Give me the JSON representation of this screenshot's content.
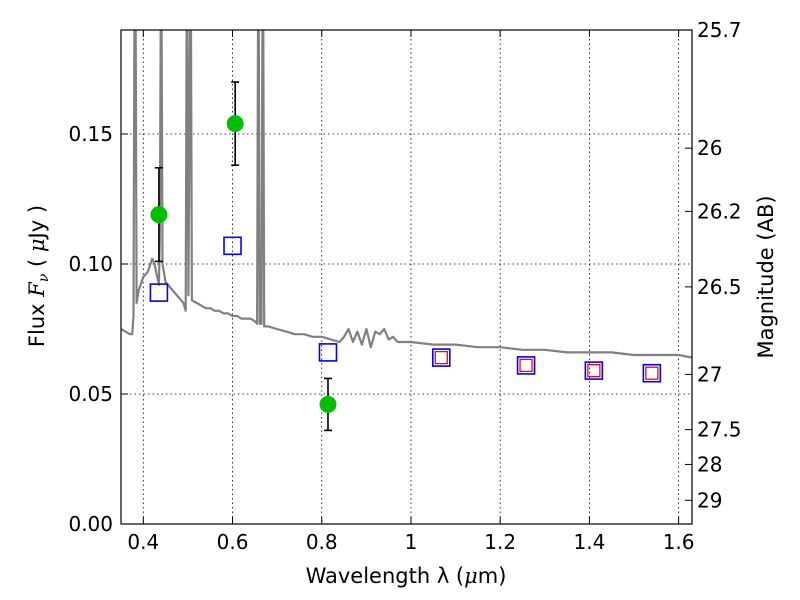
{
  "chart_data": {
    "type": "scatter",
    "xlabel_text": "Wavelength  λ (",
    "xlabel_unit_symbol": "μ",
    "xlabel_unit_rest": "m)",
    "ylabel_text": "Flux  ",
    "ylabel_symbol": "F",
    "ylabel_subscript": "ν",
    "ylabel_unit_open": "  (  ",
    "ylabel_unit_symbol": "μ",
    "ylabel_unit_rest": "Jy  )",
    "y2label": "Magnitude (AB)",
    "xlim": [
      0.35,
      1.63
    ],
    "ylim": [
      0.0,
      0.19
    ],
    "grid": true,
    "x_ticks": [
      {
        "value": 0.4,
        "label": "0.4"
      },
      {
        "value": 0.6,
        "label": "0.6"
      },
      {
        "value": 0.8,
        "label": "0.8"
      },
      {
        "value": 1.0,
        "label": "1"
      },
      {
        "value": 1.2,
        "label": "1.2"
      },
      {
        "value": 1.4,
        "label": "1.4"
      },
      {
        "value": 1.6,
        "label": "1.6"
      }
    ],
    "y_ticks": [
      {
        "value": 0.0,
        "label": "0.00"
      },
      {
        "value": 0.05,
        "label": "0.05"
      },
      {
        "value": 0.1,
        "label": "0.10"
      },
      {
        "value": 0.15,
        "label": "0.15"
      }
    ],
    "y2_ticks": [
      {
        "value": 25.7,
        "label": "25.7"
      },
      {
        "value": 26.0,
        "label": "26"
      },
      {
        "value": 26.2,
        "label": "26.2"
      },
      {
        "value": 26.5,
        "label": "26.5"
      },
      {
        "value": 27.0,
        "label": "27"
      },
      {
        "value": 27.5,
        "label": "27.5"
      },
      {
        "value": 28.0,
        "label": "28"
      },
      {
        "value": 29.0,
        "label": "29"
      }
    ],
    "series": [
      {
        "kind": "line",
        "color": "#808080",
        "points": [
          [
            0.35,
            0.075
          ],
          [
            0.36,
            0.074
          ],
          [
            0.37,
            0.073
          ],
          [
            0.375,
            0.073
          ],
          [
            0.378,
            0.08
          ],
          [
            0.38,
            0.19
          ],
          [
            0.383,
            0.19
          ],
          [
            0.385,
            0.085
          ],
          [
            0.39,
            0.09
          ],
          [
            0.4,
            0.095
          ],
          [
            0.41,
            0.097
          ],
          [
            0.42,
            0.102
          ],
          [
            0.425,
            0.1
          ],
          [
            0.43,
            0.096
          ],
          [
            0.435,
            0.092
          ],
          [
            0.437,
            0.11
          ],
          [
            0.439,
            0.19
          ],
          [
            0.441,
            0.19
          ],
          [
            0.443,
            0.1
          ],
          [
            0.45,
            0.093
          ],
          [
            0.46,
            0.091
          ],
          [
            0.47,
            0.089
          ],
          [
            0.48,
            0.087
          ],
          [
            0.49,
            0.085
          ],
          [
            0.495,
            0.082
          ],
          [
            0.497,
            0.19
          ],
          [
            0.499,
            0.19
          ],
          [
            0.501,
            0.088
          ],
          [
            0.505,
            0.19
          ],
          [
            0.507,
            0.19
          ],
          [
            0.509,
            0.086
          ],
          [
            0.52,
            0.085
          ],
          [
            0.53,
            0.084
          ],
          [
            0.54,
            0.083
          ],
          [
            0.55,
            0.083
          ],
          [
            0.56,
            0.082
          ],
          [
            0.57,
            0.082
          ],
          [
            0.58,
            0.081
          ],
          [
            0.59,
            0.081
          ],
          [
            0.6,
            0.08
          ],
          [
            0.61,
            0.08
          ],
          [
            0.62,
            0.079
          ],
          [
            0.63,
            0.079
          ],
          [
            0.64,
            0.079
          ],
          [
            0.65,
            0.078
          ],
          [
            0.655,
            0.077
          ],
          [
            0.657,
            0.19
          ],
          [
            0.659,
            0.19
          ],
          [
            0.661,
            0.077
          ],
          [
            0.665,
            0.077
          ],
          [
            0.667,
            0.19
          ],
          [
            0.669,
            0.19
          ],
          [
            0.671,
            0.076
          ],
          [
            0.68,
            0.076
          ],
          [
            0.7,
            0.075
          ],
          [
            0.72,
            0.074
          ],
          [
            0.74,
            0.073
          ],
          [
            0.76,
            0.073
          ],
          [
            0.78,
            0.072
          ],
          [
            0.8,
            0.072
          ],
          [
            0.82,
            0.071
          ],
          [
            0.84,
            0.07
          ],
          [
            0.85,
            0.072
          ],
          [
            0.86,
            0.075
          ],
          [
            0.87,
            0.07
          ],
          [
            0.88,
            0.074
          ],
          [
            0.89,
            0.069
          ],
          [
            0.9,
            0.075
          ],
          [
            0.91,
            0.068
          ],
          [
            0.92,
            0.074
          ],
          [
            0.93,
            0.073
          ],
          [
            0.94,
            0.075
          ],
          [
            0.95,
            0.071
          ],
          [
            0.96,
            0.072
          ],
          [
            0.97,
            0.07
          ],
          [
            1.0,
            0.07
          ],
          [
            1.05,
            0.069
          ],
          [
            1.1,
            0.069
          ],
          [
            1.15,
            0.068
          ],
          [
            1.2,
            0.068
          ],
          [
            1.25,
            0.067
          ],
          [
            1.3,
            0.067
          ],
          [
            1.35,
            0.066
          ],
          [
            1.4,
            0.066
          ],
          [
            1.45,
            0.066
          ],
          [
            1.5,
            0.065
          ],
          [
            1.55,
            0.065
          ],
          [
            1.6,
            0.065
          ],
          [
            1.63,
            0.064
          ]
        ]
      },
      {
        "kind": "points_with_errors",
        "color": "#00bf00",
        "points": [
          {
            "x": 0.435,
            "y": 0.119,
            "err": 0.018
          },
          {
            "x": 0.606,
            "y": 0.154,
            "err": 0.016
          },
          {
            "x": 0.814,
            "y": 0.046,
            "err": 0.01
          }
        ]
      },
      {
        "kind": "open_squares",
        "color": "#0000ff",
        "points": [
          [
            0.435,
            0.089
          ],
          [
            0.6,
            0.107
          ],
          [
            0.814,
            0.066
          ],
          [
            1.068,
            0.064
          ],
          [
            1.258,
            0.061
          ],
          [
            1.41,
            0.059
          ],
          [
            1.54,
            0.058
          ]
        ]
      },
      {
        "kind": "open_squares_small",
        "color": "#ff0000",
        "points": [
          [
            1.068,
            0.064
          ],
          [
            1.258,
            0.061
          ],
          [
            1.41,
            0.059
          ],
          [
            1.54,
            0.058
          ]
        ]
      }
    ]
  }
}
